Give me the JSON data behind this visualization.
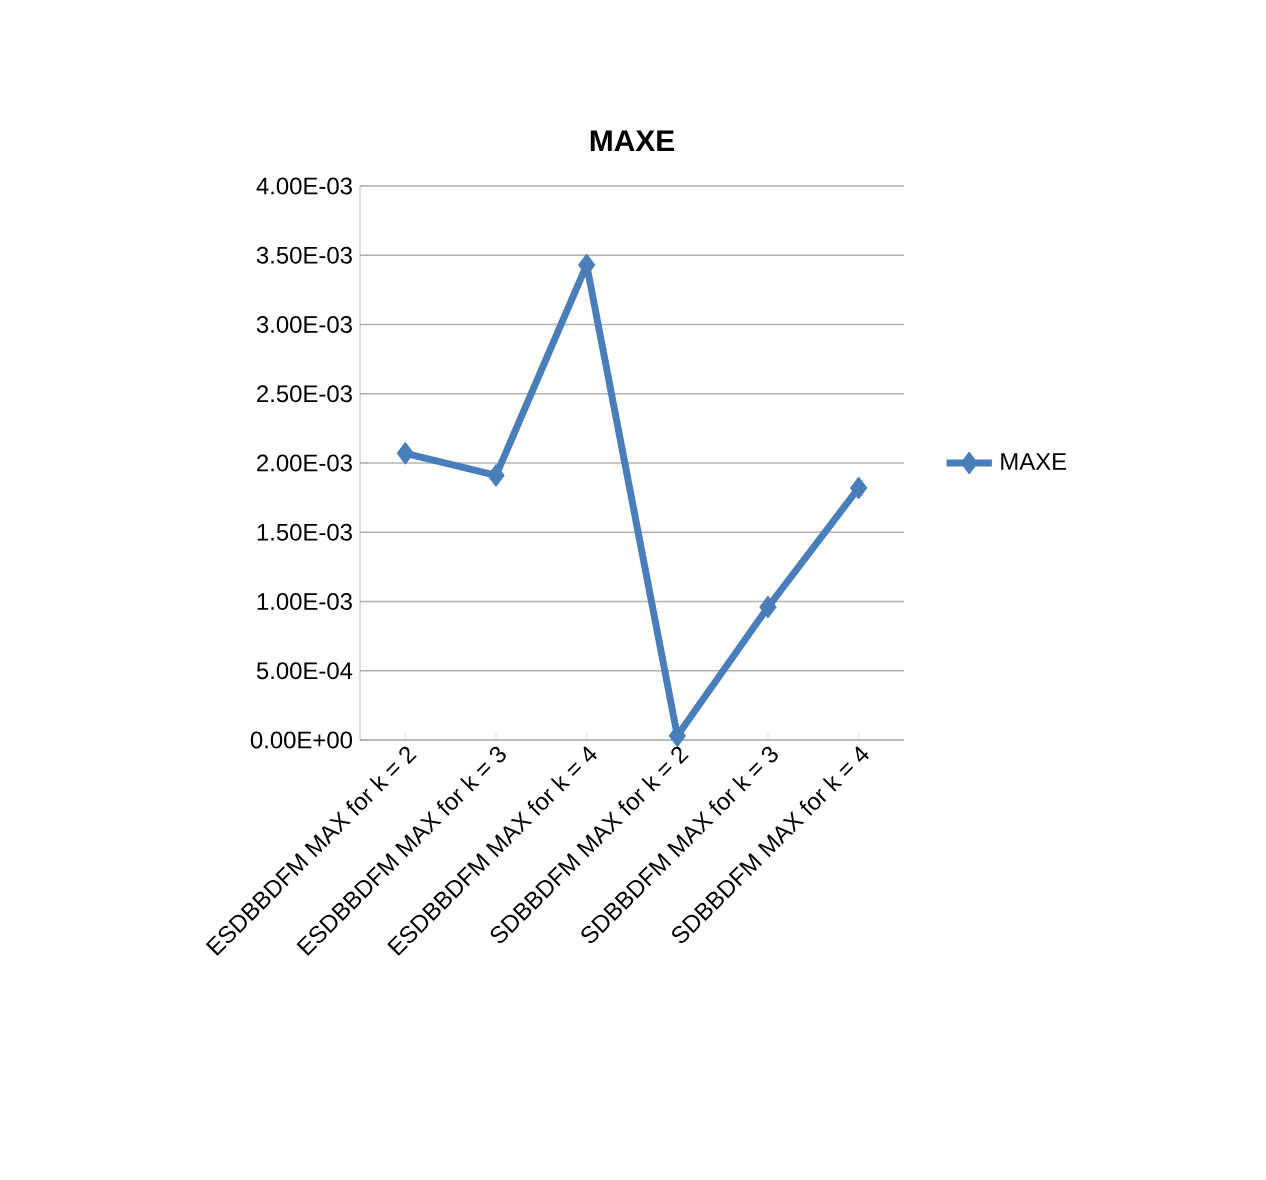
{
  "chart_data": {
    "type": "line",
    "title": "MAXE",
    "categories": [
      "ESDBBDFM MAX for k = 2",
      "ESDBBDFM MAX for k = 3",
      "ESDBBDFM MAX for k = 4",
      "SDBBDFM MAX for k = 2",
      "SDBBDFM MAX for k = 3",
      "SDBBDFM MAX for k = 4"
    ],
    "series": [
      {
        "name": "MAXE",
        "color": "#4a7ebb",
        "values": [
          0.00207,
          0.00191,
          0.00343,
          3e-05,
          0.00096,
          0.00182
        ]
      }
    ],
    "ylim": [
      0,
      0.004
    ],
    "yticks": [
      {
        "value": 0,
        "label": "0.00E+00"
      },
      {
        "value": 0.0005,
        "label": "5.00E-04"
      },
      {
        "value": 0.001,
        "label": "1.00E-03"
      },
      {
        "value": 0.0015,
        "label": "1.50E-03"
      },
      {
        "value": 0.002,
        "label": "2.00E-03"
      },
      {
        "value": 0.0025,
        "label": "2.50E-03"
      },
      {
        "value": 0.003,
        "label": "3.00E-03"
      },
      {
        "value": 0.0035,
        "label": "3.50E-03"
      },
      {
        "value": 0.004,
        "label": "4.00E-03"
      }
    ],
    "grid": "y",
    "legend": "right",
    "marker": "diamond",
    "line_style": "solid"
  }
}
